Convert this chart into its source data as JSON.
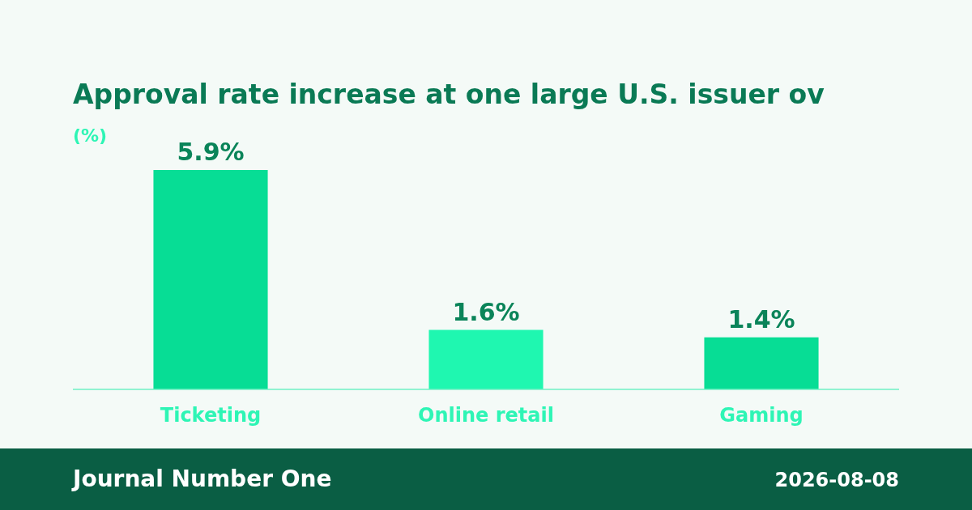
{
  "chart_data": {
    "type": "bar",
    "title": "Approval rate increase at one large U.S. issuer ov",
    "ylabel": "(%)",
    "categories": [
      "Ticketing",
      "Online retail",
      "Gaming"
    ],
    "values": [
      5.9,
      1.6,
      1.4
    ],
    "colors": [
      "#07dd95",
      "#1ff7b0",
      "#07dd95"
    ],
    "value_labels": [
      "5.9%",
      "1.6%",
      "1.4%"
    ],
    "annotations": [
      "Journal Number One",
      "2026-08-08"
    ]
  }
}
